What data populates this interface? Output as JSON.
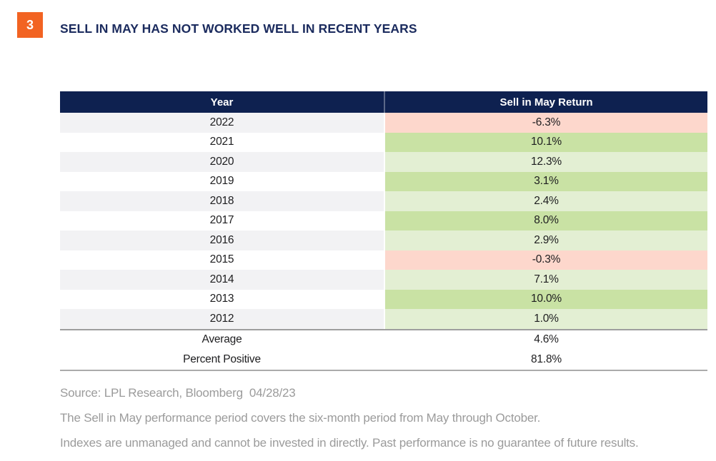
{
  "figure": {
    "number": "3",
    "title": "SELL IN MAY HAS NOT WORKED WELL IN RECENT YEARS"
  },
  "table": {
    "columns": {
      "year": "Year",
      "return": "Sell in May Return"
    },
    "rows": [
      {
        "year": "2022",
        "return": "-6.3%",
        "tone": "negative"
      },
      {
        "year": "2021",
        "return": "10.1%",
        "tone": "green-dark"
      },
      {
        "year": "2020",
        "return": "12.3%",
        "tone": "green-light"
      },
      {
        "year": "2019",
        "return": "3.1%",
        "tone": "green-dark"
      },
      {
        "year": "2018",
        "return": "2.4%",
        "tone": "green-light"
      },
      {
        "year": "2017",
        "return": "8.0%",
        "tone": "green-dark"
      },
      {
        "year": "2016",
        "return": "2.9%",
        "tone": "green-light"
      },
      {
        "year": "2015",
        "return": "-0.3%",
        "tone": "negative"
      },
      {
        "year": "2014",
        "return": "7.1%",
        "tone": "green-light"
      },
      {
        "year": "2013",
        "return": "10.0%",
        "tone": "green-dark"
      },
      {
        "year": "2012",
        "return": "1.0%",
        "tone": "green-light"
      }
    ],
    "summary_rows": [
      {
        "label": "Average",
        "value": "4.6%"
      },
      {
        "label": "Percent Positive",
        "value": "81.8%"
      }
    ]
  },
  "chart_data": {
    "type": "table",
    "title": "SELL IN MAY HAS NOT WORKED WELL IN RECENT YEARS",
    "columns": [
      "Year",
      "Sell in May Return"
    ],
    "years": [
      "2022",
      "2021",
      "2020",
      "2019",
      "2018",
      "2017",
      "2016",
      "2015",
      "2014",
      "2013",
      "2012"
    ],
    "returns_pct": [
      -6.3,
      10.1,
      12.3,
      3.1,
      2.4,
      8.0,
      2.9,
      -0.3,
      7.1,
      10.0,
      1.0
    ],
    "average_pct": 4.6,
    "percent_positive_pct": 81.8
  },
  "footnotes": [
    "Source: LPL Research, Bloomberg  04/28/23",
    "The Sell in May performance period covers the six-month period from May through October.",
    "Indexes are unmanaged and cannot be invested in directly. Past performance is no guarantee of future results."
  ],
  "colors": {
    "accent_orange": "#F26322",
    "header_navy": "#0E2150",
    "title_navy": "#1B2B5E",
    "negative_bg": "#FDD7CC",
    "positive_strong_bg": "#C9E2A4",
    "positive_soft_bg": "#E3EFD3",
    "stripe_bg": "#F2F2F4",
    "border_gray": "#9E9E9E",
    "cell_text": "#1D1D1F",
    "footnote_gray": "#9B9B9B"
  }
}
